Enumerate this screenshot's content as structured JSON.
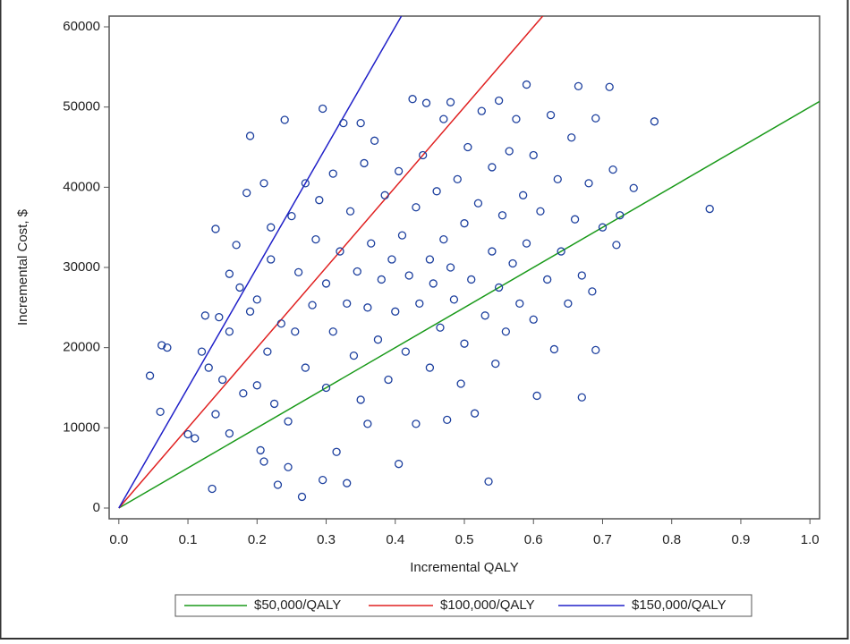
{
  "chart_data": {
    "type": "scatter",
    "xlabel": "Incremental QALY",
    "ylabel": "Incremental Cost, $",
    "xlim": [
      -0.014,
      1.014
    ],
    "ylim": [
      -1340,
      61340
    ],
    "xticks": [
      {
        "value": 0,
        "label": "0.0"
      },
      0.1,
      0.2,
      0.3,
      0.4,
      0.5,
      0.6,
      0.7,
      0.8,
      0.9,
      {
        "value": 1,
        "label": "1.0"
      }
    ],
    "yticks": [
      0,
      10000,
      20000,
      30000,
      40000,
      50000,
      60000
    ],
    "legend": "bottom",
    "points": {
      "color": "#1c3f9e",
      "x": [
        0.045,
        0.06,
        0.062,
        0.07,
        0.1,
        0.11,
        0.12,
        0.125,
        0.13,
        0.135,
        0.14,
        0.14,
        0.145,
        0.15,
        0.16,
        0.16,
        0.16,
        0.17,
        0.175,
        0.18,
        0.185,
        0.19,
        0.19,
        0.2,
        0.2,
        0.205,
        0.21,
        0.21,
        0.215,
        0.22,
        0.22,
        0.225,
        0.23,
        0.235,
        0.24,
        0.245,
        0.245,
        0.25,
        0.255,
        0.26,
        0.265,
        0.27,
        0.27,
        0.28,
        0.285,
        0.29,
        0.295,
        0.295,
        0.3,
        0.3,
        0.31,
        0.31,
        0.315,
        0.32,
        0.325,
        0.33,
        0.33,
        0.335,
        0.34,
        0.345,
        0.35,
        0.35,
        0.355,
        0.36,
        0.36,
        0.365,
        0.37,
        0.375,
        0.38,
        0.385,
        0.39,
        0.395,
        0.4,
        0.405,
        0.405,
        0.41,
        0.415,
        0.42,
        0.425,
        0.43,
        0.43,
        0.435,
        0.44,
        0.445,
        0.45,
        0.45,
        0.455,
        0.46,
        0.465,
        0.47,
        0.47,
        0.475,
        0.48,
        0.48,
        0.485,
        0.49,
        0.495,
        0.5,
        0.5,
        0.505,
        0.51,
        0.515,
        0.52,
        0.525,
        0.53,
        0.535,
        0.54,
        0.54,
        0.545,
        0.55,
        0.55,
        0.555,
        0.56,
        0.565,
        0.57,
        0.575,
        0.58,
        0.585,
        0.59,
        0.59,
        0.6,
        0.6,
        0.605,
        0.61,
        0.62,
        0.625,
        0.63,
        0.635,
        0.64,
        0.65,
        0.655,
        0.66,
        0.665,
        0.67,
        0.67,
        0.68,
        0.685,
        0.69,
        0.69,
        0.7,
        0.71,
        0.715,
        0.72,
        0.725,
        0.745,
        0.775,
        0.855
      ],
      "values": [
        16500,
        12000,
        20300,
        20000,
        9200,
        8700,
        19500,
        24000,
        17500,
        2400,
        11700,
        34800,
        23800,
        16000,
        29200,
        22000,
        9300,
        32800,
        27500,
        14300,
        39300,
        46400,
        24500,
        15300,
        26000,
        7200,
        40500,
        5800,
        19500,
        31000,
        35000,
        13000,
        2900,
        23000,
        48400,
        10800,
        5100,
        36400,
        22000,
        29400,
        1400,
        40500,
        17500,
        25300,
        33500,
        38400,
        3500,
        49800,
        15000,
        28000,
        22000,
        41700,
        7000,
        32000,
        48000,
        3100,
        25500,
        37000,
        19000,
        29500,
        48000,
        13500,
        43000,
        25000,
        10500,
        33000,
        45800,
        21000,
        28500,
        39000,
        16000,
        31000,
        24500,
        5500,
        42000,
        34000,
        19500,
        29000,
        51000,
        10500,
        37500,
        25500,
        44000,
        50500,
        31000,
        17500,
        28000,
        39500,
        22500,
        33500,
        48500,
        11000,
        30000,
        50600,
        26000,
        41000,
        15500,
        35500,
        20500,
        45000,
        28500,
        11800,
        38000,
        49500,
        24000,
        3300,
        42500,
        32000,
        18000,
        50800,
        27500,
        36500,
        22000,
        44500,
        30500,
        48500,
        25500,
        39000,
        52800,
        33000,
        23500,
        44000,
        14000,
        37000,
        28500,
        49000,
        19800,
        41000,
        32000,
        25500,
        46200,
        36000,
        52600,
        13800,
        29000,
        40500,
        27000,
        19700,
        48600,
        35000,
        52500,
        42200,
        32800,
        36500,
        39900,
        48200,
        37300
      ]
    },
    "series": [
      {
        "name": "$50,000/QALY",
        "color": "#1a9a1a",
        "x": [
          0,
          1.014
        ],
        "values": [
          0,
          50700
        ]
      },
      {
        "name": "$100,000/QALY",
        "color": "#e02020",
        "x": [
          0,
          0.6134
        ],
        "values": [
          0,
          61340
        ]
      },
      {
        "name": "$150,000/QALY",
        "color": "#2020c8",
        "x": [
          0,
          0.4089
        ],
        "values": [
          0,
          61340
        ]
      }
    ]
  }
}
